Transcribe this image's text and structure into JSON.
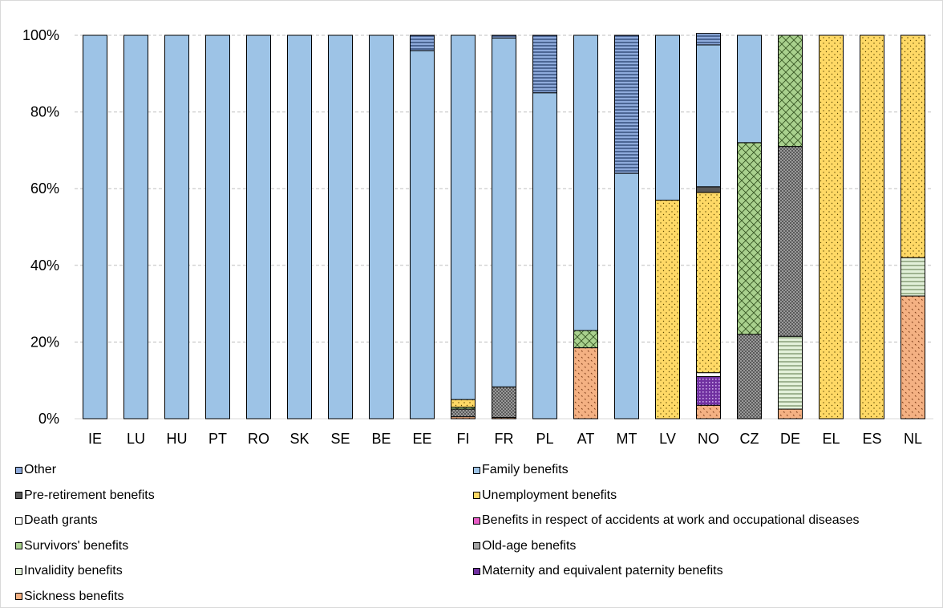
{
  "chart_data": {
    "type": "bar",
    "stacked": true,
    "title": "",
    "xlabel": "",
    "ylabel": "",
    "ylim": [
      0,
      100
    ],
    "yticks": [
      "0%",
      "20%",
      "40%",
      "60%",
      "80%",
      "100%"
    ],
    "grid": true,
    "legend_position": "bottom",
    "categories": [
      "IE",
      "LU",
      "HU",
      "PT",
      "RO",
      "SK",
      "SE",
      "BE",
      "EE",
      "FI",
      "FR",
      "PL",
      "AT",
      "MT",
      "LV",
      "NO",
      "CZ",
      "DE",
      "EL",
      "ES",
      "NL"
    ],
    "series": [
      {
        "name": "Sickness benefits",
        "color": "#f4b183",
        "pattern": "dots-sparse",
        "values": [
          0,
          0,
          0,
          0,
          0,
          0,
          0,
          0,
          0,
          0.5,
          0.3,
          0,
          18.5,
          0,
          0,
          3.5,
          0,
          2.5,
          0,
          0,
          32
        ]
      },
      {
        "name": "Invalidity benefits",
        "color": "#e2f0d9",
        "pattern": "hlines",
        "values": [
          0,
          0,
          0,
          0,
          0,
          0,
          0,
          0,
          0,
          0,
          0,
          0,
          0,
          0,
          0,
          0,
          0,
          19,
          0,
          0,
          10
        ]
      },
      {
        "name": "Maternity and equivalent paternity benefits",
        "color": "#7030a0",
        "pattern": "dots-dense",
        "values": [
          0,
          0,
          0,
          0,
          0,
          0,
          0,
          0,
          0,
          0,
          0,
          0,
          0,
          0,
          0,
          7.5,
          0,
          0,
          0,
          0,
          0
        ]
      },
      {
        "name": "Old-age benefits",
        "color": "#a6a6a6",
        "pattern": "crosshatch",
        "values": [
          0,
          0,
          0,
          0,
          0,
          0,
          0,
          0,
          0,
          2.0,
          8.0,
          0,
          0,
          0,
          0,
          0,
          22,
          49.5,
          0,
          0,
          0
        ]
      },
      {
        "name": "Survivors' benefits",
        "color": "#a9d18e",
        "pattern": "diagcross",
        "values": [
          0,
          0,
          0,
          0,
          0,
          0,
          0,
          0,
          0,
          0.5,
          0,
          0,
          4.5,
          0,
          0,
          0,
          50,
          29,
          0,
          0,
          0
        ]
      },
      {
        "name": "Benefits in respect of accidents at work and occupational diseases",
        "color": "#e85cc7",
        "pattern": "dots-dense",
        "values": [
          0,
          0,
          0,
          0,
          0,
          0,
          0,
          0,
          0,
          0,
          0,
          0,
          0,
          0,
          0,
          0,
          0,
          0,
          0,
          0,
          0
        ]
      },
      {
        "name": "Death grants",
        "color": "#ffffff",
        "pattern": "none",
        "values": [
          0,
          0,
          0,
          0,
          0,
          0,
          0,
          0,
          0,
          0,
          0,
          0,
          0,
          0,
          0,
          1,
          0,
          0,
          0,
          0,
          0
        ]
      },
      {
        "name": "Unemployment benefits",
        "color": "#ffd966",
        "pattern": "dots-fine",
        "values": [
          0,
          0,
          0,
          0,
          0,
          0,
          0,
          0,
          0,
          2.0,
          0,
          0,
          0,
          0,
          57,
          47,
          0,
          0,
          100,
          100,
          58
        ]
      },
      {
        "name": "Pre-retirement benefits",
        "color": "#595959",
        "pattern": "none",
        "values": [
          0,
          0,
          0,
          0,
          0,
          0,
          0,
          0,
          0,
          0,
          0,
          0,
          0,
          0,
          0,
          1.5,
          0,
          0,
          0,
          0,
          0
        ]
      },
      {
        "name": "Family benefits",
        "color": "#9dc3e6",
        "pattern": "none",
        "values": [
          100,
          100,
          100,
          100,
          100,
          100,
          100,
          100,
          96,
          95,
          91,
          85,
          77,
          64,
          43,
          37,
          28,
          0,
          0,
          0,
          0
        ]
      },
      {
        "name": "Other",
        "color": "#8eaadb",
        "pattern": "hlines-dark",
        "values": [
          0,
          0,
          0,
          0,
          0,
          0,
          0,
          0,
          4,
          0,
          0.7,
          15,
          0,
          36,
          0,
          3,
          0,
          0,
          0,
          0,
          0
        ]
      }
    ]
  },
  "legend": [
    {
      "label": "Other",
      "series": "Other"
    },
    {
      "label": "Family benefits",
      "series": "Family benefits"
    },
    {
      "label": "Pre-retirement benefits",
      "series": "Pre-retirement benefits"
    },
    {
      "label": "Unemployment benefits",
      "series": "Unemployment benefits"
    },
    {
      "label": "Death grants",
      "series": "Death grants"
    },
    {
      "label": "Benefits in respect of accidents at work and occupational diseases",
      "series": "Benefits in respect of accidents at work and occupational diseases"
    },
    {
      "label": "Survivors' benefits",
      "series": "Survivors' benefits"
    },
    {
      "label": "Old-age benefits",
      "series": "Old-age benefits"
    },
    {
      "label": "Invalidity benefits",
      "series": "Invalidity benefits"
    },
    {
      "label": "Maternity and equivalent paternity benefits",
      "series": "Maternity and equivalent paternity benefits"
    },
    {
      "label": "Sickness benefits",
      "series": "Sickness benefits"
    }
  ]
}
